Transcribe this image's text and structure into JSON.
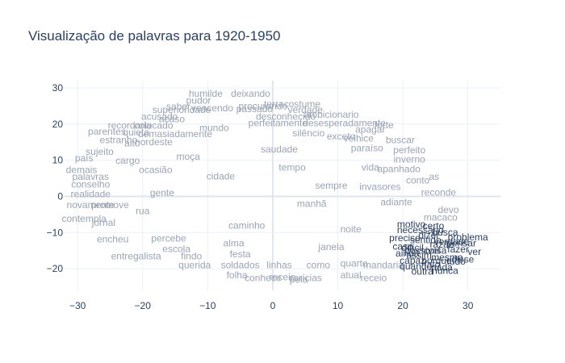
{
  "chart_data": {
    "type": "scatter",
    "title": "Visualização de palavras para 1920-1950",
    "xlabel": "",
    "ylabel": "",
    "xlim": [
      -32,
      35
    ],
    "ylim": [
      -26,
      32
    ],
    "x_ticks": [
      -30,
      -20,
      -10,
      0,
      10,
      20,
      30
    ],
    "y_ticks": [
      -20,
      -10,
      0,
      10,
      20,
      30
    ],
    "grid": true,
    "colors": {
      "background_word": "#9aa4b3",
      "highlight_word": "#2a3f5f",
      "grid": "#ebf0f8",
      "zeroline": "#dfe5ef"
    },
    "series": [
      {
        "points": [
          {
            "x": -10.3,
            "y": 28.4,
            "label": "humilde"
          },
          {
            "x": -3.4,
            "y": 28.4,
            "label": "deixando"
          },
          {
            "x": -11.4,
            "y": 26.5,
            "label": "pudor"
          },
          {
            "x": -14.5,
            "y": 24.9,
            "label": "saber"
          },
          {
            "x": -14.0,
            "y": 24.0,
            "label": "superioridade"
          },
          {
            "x": -9.3,
            "y": 24.4,
            "label": "vencendo"
          },
          {
            "x": -1.5,
            "y": 25.0,
            "label": "procurando"
          },
          {
            "x": 3.0,
            "y": 25.5,
            "label": "terracostume"
          },
          {
            "x": -2.8,
            "y": 24.2,
            "label": "passado"
          },
          {
            "x": 5.0,
            "y": 24.0,
            "label": "verdade"
          },
          {
            "x": -17.4,
            "y": 22.1,
            "label": "acusado"
          },
          {
            "x": -15.5,
            "y": 21.4,
            "label": "acaso"
          },
          {
            "x": 2.0,
            "y": 22.1,
            "label": "desconhecido"
          },
          {
            "x": 9.0,
            "y": 22.6,
            "label": "ambicionario"
          },
          {
            "x": 11.0,
            "y": 20.3,
            "label": "desesperadamente"
          },
          {
            "x": -22.0,
            "y": 19.6,
            "label": "recordaria"
          },
          {
            "x": -18.3,
            "y": 19.6,
            "label": "colocado"
          },
          {
            "x": 0.8,
            "y": 20.3,
            "label": "perfeitamente"
          },
          {
            "x": 17.1,
            "y": 19.7,
            "label": "forte"
          },
          {
            "x": -25.5,
            "y": 18.0,
            "label": "parentes"
          },
          {
            "x": -21.0,
            "y": 17.7,
            "label": "quieta"
          },
          {
            "x": -15.0,
            "y": 17.3,
            "label": "demasiadamente"
          },
          {
            "x": 15.0,
            "y": 18.5,
            "label": "apagar"
          },
          {
            "x": 10.5,
            "y": 16.6,
            "label": "exceto"
          },
          {
            "x": 13.2,
            "y": 16.0,
            "label": "velhice"
          },
          {
            "x": -23.7,
            "y": 15.6,
            "label": "estranho"
          },
          {
            "x": -21.6,
            "y": 14.7,
            "label": "alto"
          },
          {
            "x": -18.3,
            "y": 15.1,
            "label": "nordeste"
          },
          {
            "x": 19.6,
            "y": 15.6,
            "label": "buscar"
          },
          {
            "x": -26.6,
            "y": 12.4,
            "label": "sujeito"
          },
          {
            "x": 14.5,
            "y": 13.4,
            "label": "paraíso"
          },
          {
            "x": 21.0,
            "y": 12.8,
            "label": "perfeito"
          },
          {
            "x": -29.0,
            "y": 10.6,
            "label": "país"
          },
          {
            "x": -22.3,
            "y": 9.9,
            "label": "cargo"
          },
          {
            "x": 21.0,
            "y": 10.2,
            "label": "inverno"
          },
          {
            "x": -29.4,
            "y": 7.3,
            "label": "demais"
          },
          {
            "x": -18.0,
            "y": 7.3,
            "label": "ocasião"
          },
          {
            "x": 19.4,
            "y": 7.6,
            "label": "apanhado"
          },
          {
            "x": -28.0,
            "y": 5.4,
            "label": "palavras"
          },
          {
            "x": 24.8,
            "y": 5.4,
            "label": "as"
          },
          {
            "x": -28.0,
            "y": 3.3,
            "label": "conselho"
          },
          {
            "x": 22.3,
            "y": 4.5,
            "label": "conto"
          },
          {
            "x": 16.5,
            "y": 2.7,
            "label": "invasores"
          },
          {
            "x": -28.0,
            "y": 0.7,
            "label": "realidade"
          },
          {
            "x": 25.5,
            "y": 1.1,
            "label": "reconde"
          },
          {
            "x": -28.0,
            "y": -2.3,
            "label": "novamente"
          },
          {
            "x": -25.0,
            "y": -2.3,
            "label": "promove"
          },
          {
            "x": 19.0,
            "y": -1.6,
            "label": "adiante"
          },
          {
            "x": 27.0,
            "y": -3.7,
            "label": "devo"
          },
          {
            "x": -29.0,
            "y": -6.2,
            "label": "contempla"
          },
          {
            "x": -26.0,
            "y": -7.3,
            "label": "jornal"
          },
          {
            "x": 25.8,
            "y": -5.8,
            "label": "macaco"
          },
          {
            "x": -24.6,
            "y": -11.8,
            "label": "encheu"
          },
          {
            "x": -16.0,
            "y": -11.6,
            "label": "percebe"
          },
          {
            "x": -14.8,
            "y": -14.5,
            "label": "escola"
          },
          {
            "x": -21.0,
            "y": -16.5,
            "label": "entregalista"
          },
          {
            "x": -12.5,
            "y": -16.5,
            "label": "findo"
          },
          {
            "x": -5.0,
            "y": -16.0,
            "label": "festa"
          },
          {
            "x": -12.0,
            "y": -19.0,
            "label": "querida"
          },
          {
            "x": -5.0,
            "y": -19.0,
            "label": "soldados"
          },
          {
            "x": 1.0,
            "y": -19.0,
            "label": "linhas"
          },
          {
            "x": 7.0,
            "y": -19.0,
            "label": "como"
          },
          {
            "x": 12.5,
            "y": -18.5,
            "label": "quarto"
          },
          {
            "x": 17.0,
            "y": -19.0,
            "label": "mandaria"
          },
          {
            "x": -5.5,
            "y": -21.8,
            "label": "folha"
          },
          {
            "x": -1.5,
            "y": -22.5,
            "label": "conhece"
          },
          {
            "x": 1.5,
            "y": -22.3,
            "label": "receio"
          },
          {
            "x": 4.0,
            "y": -23.0,
            "label": "pela"
          },
          {
            "x": 5.0,
            "y": -22.5,
            "label": "carícias"
          },
          {
            "x": 12.0,
            "y": -21.8,
            "label": "atual"
          },
          {
            "x": 15.5,
            "y": -22.5,
            "label": "receio"
          },
          {
            "x": -8.0,
            "y": 5.6,
            "label": "cidade"
          },
          {
            "x": 3.0,
            "y": 8.0,
            "label": "tempo"
          },
          {
            "x": 6.0,
            "y": -2.0,
            "label": "manhã"
          },
          {
            "x": -4.0,
            "y": -8.0,
            "label": "caminho"
          },
          {
            "x": 9.0,
            "y": 3.0,
            "label": "sempre"
          },
          {
            "x": -13.0,
            "y": 11.0,
            "label": "moça"
          },
          {
            "x": 1.0,
            "y": 13.0,
            "label": "saudade"
          },
          {
            "x": -6.0,
            "y": -13.0,
            "label": "alma"
          },
          {
            "x": 12.0,
            "y": -9.0,
            "label": "noite"
          },
          {
            "x": -17.0,
            "y": 1.0,
            "label": "gente"
          },
          {
            "x": 5.5,
            "y": 17.5,
            "label": "silêncio"
          },
          {
            "x": -9.0,
            "y": 19.0,
            "label": "mundo"
          },
          {
            "x": 15.0,
            "y": 8.0,
            "label": "vida"
          },
          {
            "x": -20.0,
            "y": -4.0,
            "label": "rua"
          },
          {
            "x": 9.0,
            "y": -14.0,
            "label": "janela"
          }
        ]
      },
      {
        "points": [
          {
            "x": 21.3,
            "y": -7.7,
            "label": "motivo"
          },
          {
            "x": 24.7,
            "y": -8.2,
            "label": "certo"
          },
          {
            "x": 22.7,
            "y": -9.3,
            "label": "necessário"
          },
          {
            "x": 26.5,
            "y": -9.9,
            "label": "busca"
          },
          {
            "x": 30.0,
            "y": -11.3,
            "label": "problema"
          },
          {
            "x": 20.3,
            "y": -11.5,
            "label": "preciso"
          },
          {
            "x": 23.5,
            "y": -12.1,
            "label": "sentido"
          },
          {
            "x": 26.0,
            "y": -13.3,
            "label": "razão"
          },
          {
            "x": 20.0,
            "y": -13.8,
            "label": "caso"
          },
          {
            "x": 21.5,
            "y": -14.2,
            "label": "difícil"
          },
          {
            "x": 28.5,
            "y": -14.6,
            "label": "fazer"
          },
          {
            "x": 31.0,
            "y": -15.3,
            "label": "ver"
          },
          {
            "x": 23.0,
            "y": -15.0,
            "label": "possível"
          },
          {
            "x": 25.0,
            "y": -15.0,
            "label": "coisa"
          },
          {
            "x": 21.5,
            "y": -17.7,
            "label": "capaz"
          },
          {
            "x": 24.5,
            "y": -18.7,
            "label": "fato"
          },
          {
            "x": 29.2,
            "y": -17.4,
            "label": "disse"
          },
          {
            "x": 28.2,
            "y": -18.0,
            "label": "tudo"
          },
          {
            "x": 26.0,
            "y": -19.6,
            "label": "nada"
          },
          {
            "x": 23.0,
            "y": -20.8,
            "label": "outra"
          },
          {
            "x": 26.5,
            "y": -20.5,
            "label": "nunca"
          },
          {
            "x": 22.5,
            "y": -16.3,
            "label": "assim"
          },
          {
            "x": 26.8,
            "y": -16.8,
            "label": "mesmo"
          },
          {
            "x": 24.0,
            "y": -10.7,
            "label": "dizer"
          },
          {
            "x": 27.5,
            "y": -12.5,
            "label": "verdade"
          },
          {
            "x": 22.0,
            "y": -19.3,
            "label": "quando"
          },
          {
            "x": 29.0,
            "y": -13.0,
            "label": "pensar"
          },
          {
            "x": 25.2,
            "y": -17.8,
            "label": "porque"
          },
          {
            "x": 20.7,
            "y": -15.7,
            "label": "ainda"
          }
        ]
      }
    ]
  }
}
